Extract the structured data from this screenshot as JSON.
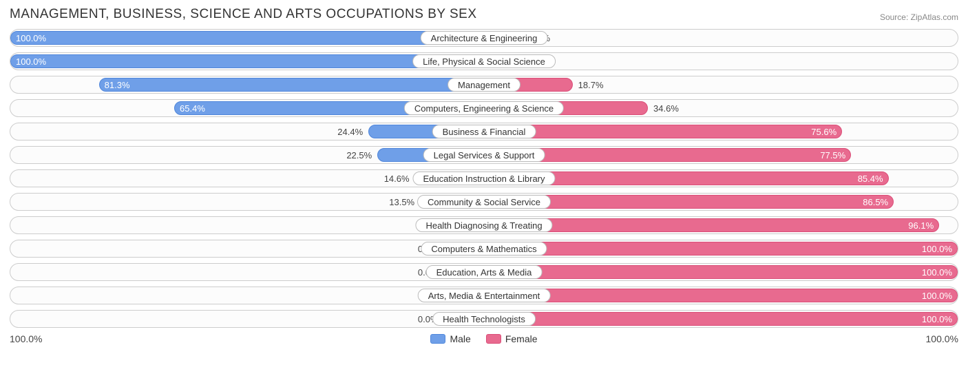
{
  "title": "MANAGEMENT, BUSINESS, SCIENCE AND ARTS OCCUPATIONS BY SEX",
  "source": "Source: ZipAtlas.com",
  "axis": {
    "left_label": "100.0%",
    "right_label": "100.0%"
  },
  "colors": {
    "male_fill": "#6f9fe8",
    "male_border": "#4f86db",
    "female_fill": "#e86a8f",
    "female_border": "#da4e78",
    "row_border": "#cccccc",
    "text": "#444444",
    "text_inside": "#ffffff"
  },
  "legend": {
    "male": "Male",
    "female": "Female"
  },
  "min_bar_pct": 8.5,
  "rows": [
    {
      "label": "Architecture & Engineering",
      "male": 100.0,
      "female": 0.0
    },
    {
      "label": "Life, Physical & Social Science",
      "male": 100.0,
      "female": 0.0
    },
    {
      "label": "Management",
      "male": 81.3,
      "female": 18.7
    },
    {
      "label": "Computers, Engineering & Science",
      "male": 65.4,
      "female": 34.6
    },
    {
      "label": "Business & Financial",
      "male": 24.4,
      "female": 75.6
    },
    {
      "label": "Legal Services & Support",
      "male": 22.5,
      "female": 77.5
    },
    {
      "label": "Education Instruction & Library",
      "male": 14.6,
      "female": 85.4
    },
    {
      "label": "Community & Social Service",
      "male": 13.5,
      "female": 86.5
    },
    {
      "label": "Health Diagnosing & Treating",
      "male": 3.9,
      "female": 96.1
    },
    {
      "label": "Computers & Mathematics",
      "male": 0.0,
      "female": 100.0
    },
    {
      "label": "Education, Arts & Media",
      "male": 0.0,
      "female": 100.0
    },
    {
      "label": "Arts, Media & Entertainment",
      "male": 0.0,
      "female": 100.0
    },
    {
      "label": "Health Technologists",
      "male": 0.0,
      "female": 100.0
    }
  ]
}
